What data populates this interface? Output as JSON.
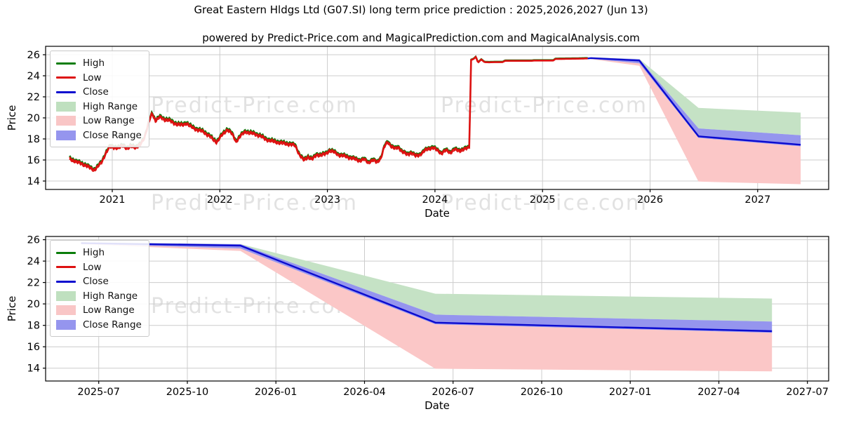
{
  "figure": {
    "title": "Great Eastern Hldgs Ltd (G07.SI) long term price prediction : 2025,2026,2027 (Jun 13)",
    "subtitle": "powered by Predict-Price.com and MagicalPrediction.com and MagicalAnalysis.com"
  },
  "watermark": {
    "text": "Predict-Price.com",
    "color": "rgba(160,160,160,0.30)"
  },
  "palette": {
    "high_line": "#0a7d0a",
    "low_line": "#dd1111",
    "close_line": "#0b0bcf",
    "high_range_fill": "#c5e2c5",
    "low_range_fill": "#fbc7c7",
    "close_range_fill": "#9595ee",
    "grid": "#cccccc",
    "axis": "#000000"
  },
  "legend": {
    "items": [
      {
        "label": "High",
        "swatch": "line",
        "color": "#0a7d0a"
      },
      {
        "label": "Low",
        "swatch": "line",
        "color": "#dd1111"
      },
      {
        "label": "Close",
        "swatch": "line",
        "color": "#0b0bcf"
      },
      {
        "label": "High Range",
        "swatch": "patch",
        "color": "#bfe0bf"
      },
      {
        "label": "Low Range",
        "swatch": "patch",
        "color": "#f9c6c6"
      },
      {
        "label": "Close Range",
        "swatch": "patch",
        "color": "#9595ee"
      }
    ]
  },
  "chart_data": [
    {
      "type": "line",
      "name": "price-history-and-prediction",
      "xlabel": "Date",
      "ylabel": "Price",
      "xlim": [
        2020.38,
        2027.66
      ],
      "ylim": [
        13.2,
        26.8
      ],
      "grid": true,
      "legend_position": "upper left",
      "xticks": [
        {
          "v": 2021,
          "label": "2021"
        },
        {
          "v": 2022,
          "label": "2022"
        },
        {
          "v": 2023,
          "label": "2023"
        },
        {
          "v": 2024,
          "label": "2024"
        },
        {
          "v": 2025,
          "label": "2025"
        },
        {
          "v": 2026,
          "label": "2026"
        },
        {
          "v": 2027,
          "label": "2027"
        }
      ],
      "yticks": [
        14,
        16,
        18,
        20,
        22,
        24,
        26
      ],
      "history": {
        "note": "High/Low/Close overlap; red Low drawn over green High; values are Close keyframes (decimal year, price)",
        "high_low_spread": 0.22,
        "points": [
          [
            2020.6,
            16.15
          ],
          [
            2020.64,
            16.0
          ],
          [
            2020.67,
            15.85
          ],
          [
            2020.71,
            15.7
          ],
          [
            2020.75,
            15.55
          ],
          [
            2020.79,
            15.3
          ],
          [
            2020.83,
            15.1
          ],
          [
            2020.86,
            15.35
          ],
          [
            2020.9,
            15.8
          ],
          [
            2020.94,
            16.7
          ],
          [
            2020.98,
            17.3
          ],
          [
            2021.02,
            17.25
          ],
          [
            2021.06,
            17.15
          ],
          [
            2021.1,
            17.45
          ],
          [
            2021.14,
            17.1
          ],
          [
            2021.18,
            17.35
          ],
          [
            2021.22,
            17.25
          ],
          [
            2021.26,
            17.45
          ],
          [
            2021.3,
            18.2
          ],
          [
            2021.34,
            19.6
          ],
          [
            2021.37,
            20.45
          ],
          [
            2021.4,
            19.8
          ],
          [
            2021.44,
            20.1
          ],
          [
            2021.48,
            19.9
          ],
          [
            2021.52,
            19.85
          ],
          [
            2021.56,
            19.6
          ],
          [
            2021.6,
            19.45
          ],
          [
            2021.65,
            19.35
          ],
          [
            2021.69,
            19.55
          ],
          [
            2021.73,
            19.2
          ],
          [
            2021.77,
            19.0
          ],
          [
            2021.81,
            18.85
          ],
          [
            2021.85,
            18.7
          ],
          [
            2021.9,
            18.35
          ],
          [
            2021.94,
            17.95
          ],
          [
            2021.97,
            17.75
          ],
          [
            2022.02,
            18.4
          ],
          [
            2022.07,
            18.95
          ],
          [
            2022.11,
            18.55
          ],
          [
            2022.15,
            17.8
          ],
          [
            2022.19,
            18.3
          ],
          [
            2022.24,
            18.75
          ],
          [
            2022.28,
            18.6
          ],
          [
            2022.33,
            18.5
          ],
          [
            2022.38,
            18.3
          ],
          [
            2022.42,
            18.05
          ],
          [
            2022.46,
            17.9
          ],
          [
            2022.5,
            17.8
          ],
          [
            2022.55,
            17.7
          ],
          [
            2022.6,
            17.6
          ],
          [
            2022.65,
            17.55
          ],
          [
            2022.7,
            17.4
          ],
          [
            2022.74,
            16.55
          ],
          [
            2022.78,
            16.0
          ],
          [
            2022.82,
            16.35
          ],
          [
            2022.86,
            16.1
          ],
          [
            2022.9,
            16.55
          ],
          [
            2022.94,
            16.5
          ],
          [
            2022.98,
            16.6
          ],
          [
            2023.02,
            16.95
          ],
          [
            2023.06,
            16.8
          ],
          [
            2023.1,
            16.55
          ],
          [
            2023.14,
            16.45
          ],
          [
            2023.18,
            16.35
          ],
          [
            2023.22,
            16.25
          ],
          [
            2023.26,
            16.1
          ],
          [
            2023.3,
            16.0
          ],
          [
            2023.34,
            16.1
          ],
          [
            2023.38,
            15.8
          ],
          [
            2023.42,
            16.05
          ],
          [
            2023.46,
            15.8
          ],
          [
            2023.5,
            16.3
          ],
          [
            2023.53,
            17.3
          ],
          [
            2023.56,
            17.75
          ],
          [
            2023.6,
            17.3
          ],
          [
            2023.63,
            17.1
          ],
          [
            2023.66,
            17.25
          ],
          [
            2023.7,
            16.8
          ],
          [
            2023.74,
            16.55
          ],
          [
            2023.78,
            16.75
          ],
          [
            2023.82,
            16.4
          ],
          [
            2023.86,
            16.55
          ],
          [
            2023.9,
            16.9
          ],
          [
            2023.94,
            17.1
          ],
          [
            2023.98,
            17.25
          ],
          [
            2024.02,
            16.95
          ],
          [
            2024.06,
            16.7
          ],
          [
            2024.1,
            16.95
          ],
          [
            2024.14,
            16.75
          ],
          [
            2024.18,
            17.05
          ],
          [
            2024.22,
            16.9
          ],
          [
            2024.26,
            17.05
          ],
          [
            2024.3,
            17.15
          ],
          [
            2024.32,
            17.2
          ],
          [
            2024.335,
            25.5
          ],
          [
            2024.36,
            25.6
          ],
          [
            2024.38,
            25.8
          ],
          [
            2024.4,
            25.25
          ],
          [
            2024.43,
            25.55
          ],
          [
            2024.46,
            25.3
          ],
          [
            2024.5,
            25.28
          ],
          [
            2024.56,
            25.3
          ],
          [
            2024.63,
            25.3
          ],
          [
            2024.65,
            25.42
          ],
          [
            2024.9,
            25.42
          ],
          [
            2024.92,
            25.45
          ],
          [
            2025.1,
            25.45
          ],
          [
            2025.12,
            25.6
          ],
          [
            2025.3,
            25.62
          ],
          [
            2025.42,
            25.65
          ]
        ]
      },
      "prediction": {
        "x": [
          2025.45,
          2025.9,
          2026.45,
          2027.4
        ],
        "close": [
          25.68,
          25.45,
          18.25,
          17.45
        ],
        "close_hi": [
          25.74,
          25.58,
          19.0,
          18.35
        ],
        "close_lo": [
          25.62,
          25.18,
          18.1,
          17.3
        ],
        "high": [
          25.76,
          25.6,
          20.95,
          20.5
        ],
        "low": [
          25.58,
          24.95,
          13.95,
          13.7
        ]
      }
    },
    {
      "type": "line",
      "name": "prediction-detail",
      "xlabel": "Date",
      "ylabel": "Price",
      "xlim": [
        2025.35,
        2027.56
      ],
      "ylim": [
        12.8,
        26.3
      ],
      "grid": true,
      "legend_position": "upper left",
      "xticks": [
        {
          "v": 2025.5,
          "label": "2025-07"
        },
        {
          "v": 2025.75,
          "label": "2025-10"
        },
        {
          "v": 2026.0,
          "label": "2026-01"
        },
        {
          "v": 2026.25,
          "label": "2026-04"
        },
        {
          "v": 2026.5,
          "label": "2026-07"
        },
        {
          "v": 2026.75,
          "label": "2026-10"
        },
        {
          "v": 2027.0,
          "label": "2027-01"
        },
        {
          "v": 2027.25,
          "label": "2027-04"
        },
        {
          "v": 2027.5,
          "label": "2027-07"
        }
      ],
      "yticks": [
        14,
        16,
        18,
        20,
        22,
        24,
        26
      ],
      "prediction": {
        "x": [
          2025.45,
          2025.9,
          2026.45,
          2027.4
        ],
        "close": [
          25.68,
          25.45,
          18.25,
          17.45
        ],
        "close_hi": [
          25.74,
          25.58,
          19.0,
          18.35
        ],
        "close_lo": [
          25.62,
          25.18,
          18.1,
          17.3
        ],
        "high": [
          25.76,
          25.6,
          20.95,
          20.5
        ],
        "low": [
          25.58,
          24.95,
          13.95,
          13.7
        ]
      }
    }
  ]
}
